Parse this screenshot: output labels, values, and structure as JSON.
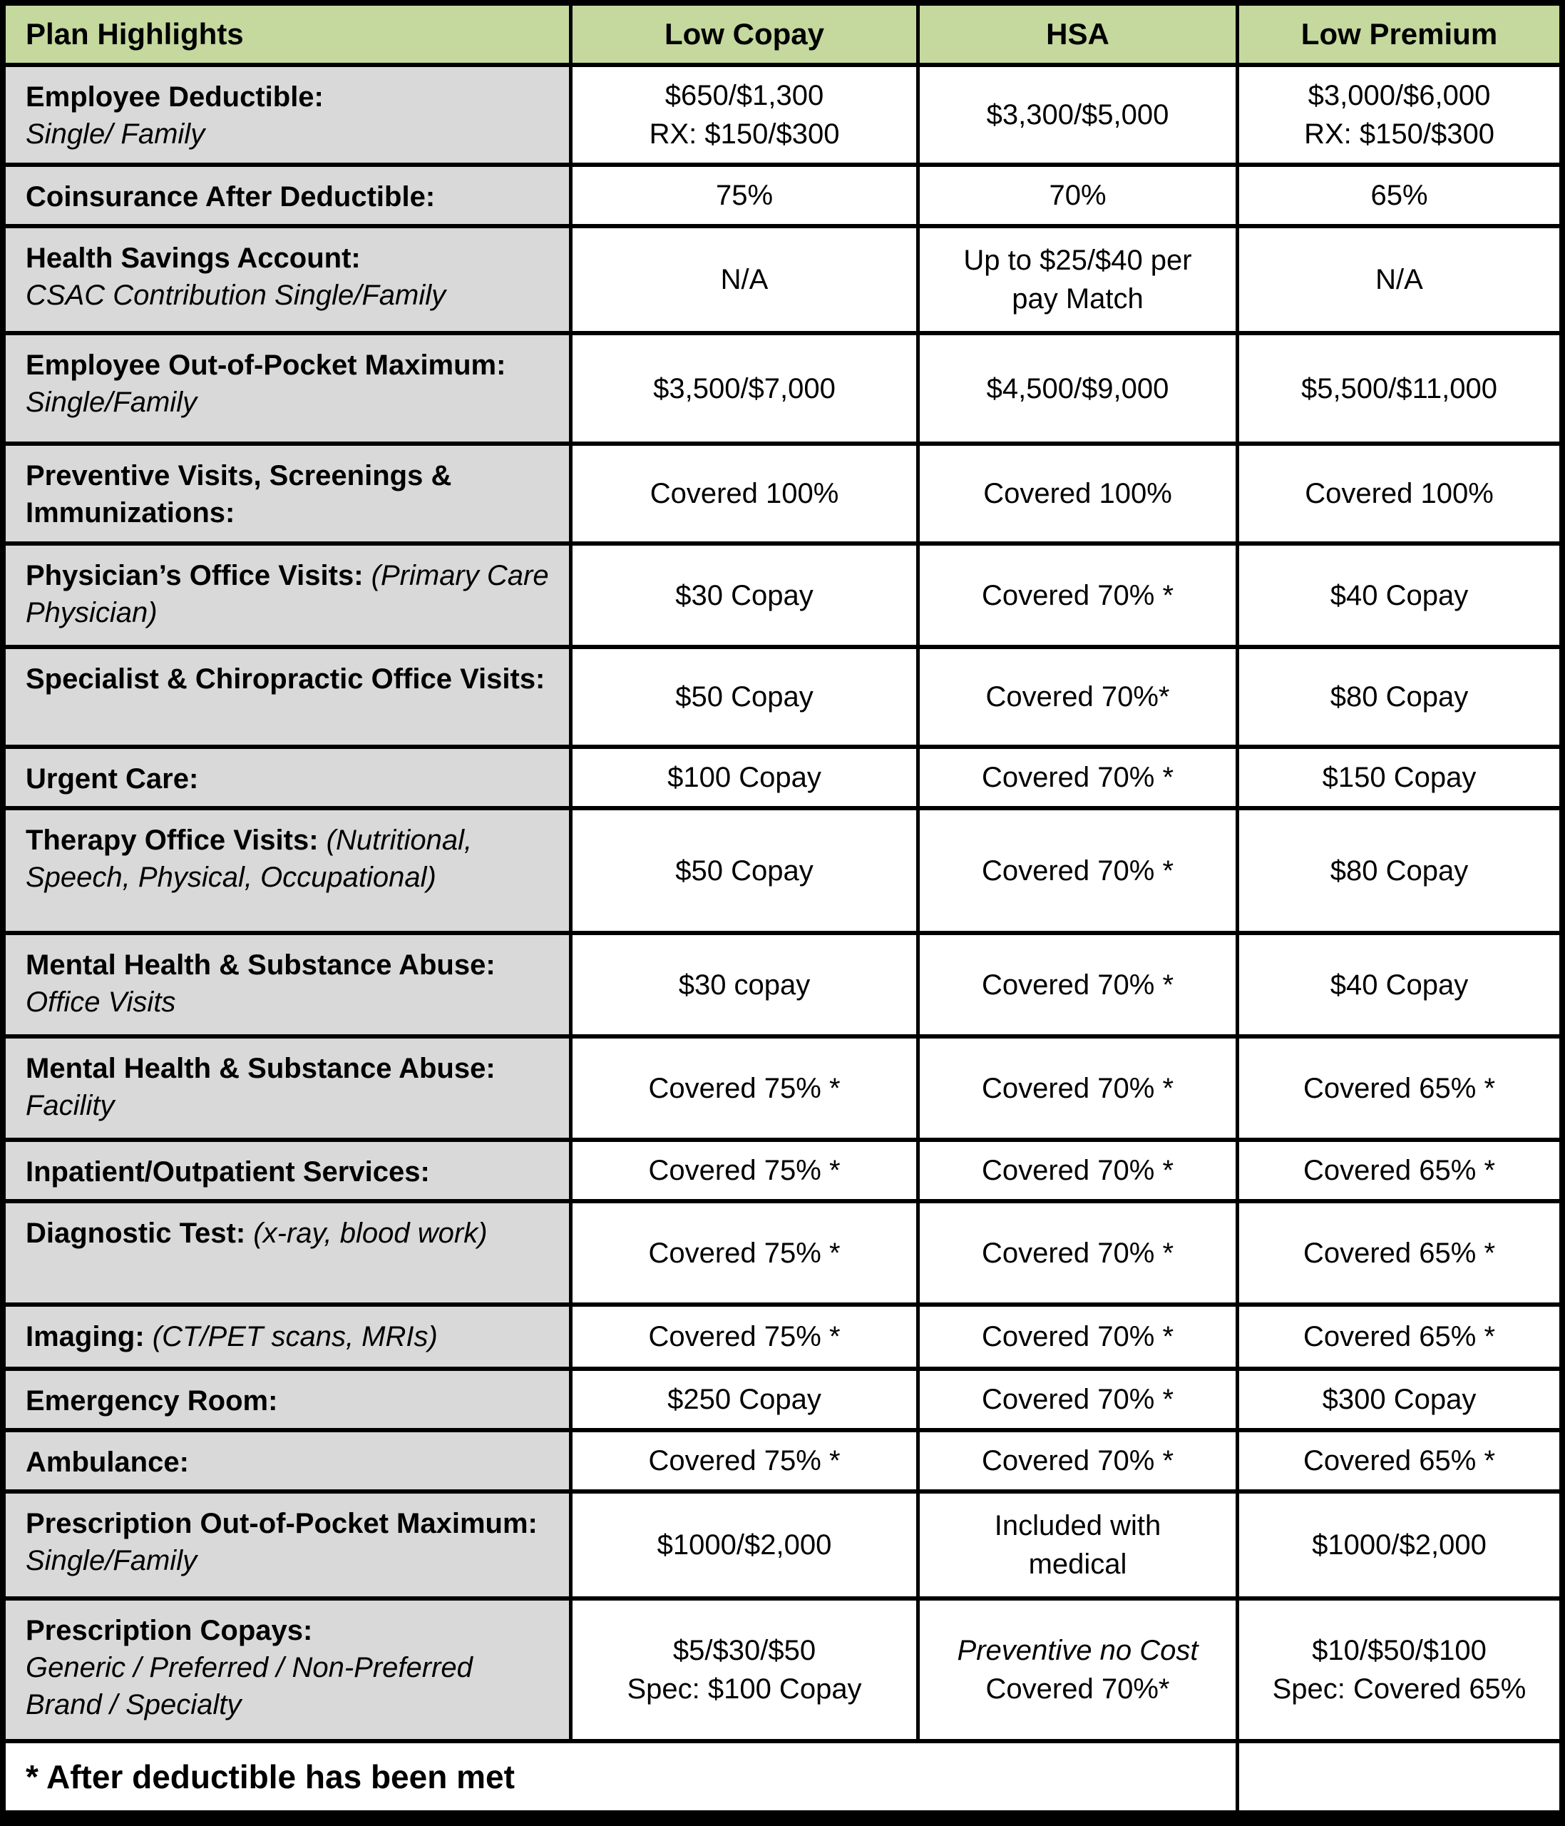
{
  "colors": {
    "header_green": "#c5d89e",
    "label_gray": "#d9d9d9",
    "border": "#000000"
  },
  "title": "Plan Highlights",
  "columns": [
    "Low Copay",
    "HSA",
    "Low Premium"
  ],
  "rows": [
    {
      "label": [
        {
          "t": "Employee Deductible:",
          "b": true
        },
        {
          "t": "Single/ Family",
          "i": true,
          "nl": true
        }
      ],
      "values": [
        [
          "$650/$1,300",
          "RX: $150/$300"
        ],
        [
          "$3,300/$5,000"
        ],
        [
          "$3,000/$6,000",
          "RX: $150/$300"
        ]
      ]
    },
    {
      "label": [
        {
          "t": "Coinsurance After Deductible:",
          "b": true
        }
      ],
      "values": [
        [
          "75%"
        ],
        [
          "70%"
        ],
        [
          "65%"
        ]
      ]
    },
    {
      "label": [
        {
          "t": "Health Savings Account:",
          "b": true
        },
        {
          "t": "CSAC Contribution Single/Family",
          "i": true,
          "nl": true
        }
      ],
      "values": [
        [
          "N/A"
        ],
        [
          "Up to $25/$40 per",
          "pay Match"
        ],
        [
          "N/A"
        ]
      ]
    },
    {
      "label": [
        {
          "t": "Employee Out-of-Pocket Maximum:",
          "b": true
        },
        {
          "t": " Single/Family",
          "i": true
        }
      ],
      "values": [
        [
          "$3,500/$7,000"
        ],
        [
          "$4,500/$9,000"
        ],
        [
          "$5,500/$11,000"
        ]
      ]
    },
    {
      "label": [
        {
          "t": "Preventive Visits, Screenings & Immunizations:",
          "b": true
        }
      ],
      "values": [
        [
          "Covered 100%"
        ],
        [
          "Covered 100%"
        ],
        [
          "Covered 100%"
        ]
      ]
    },
    {
      "label": [
        {
          "t": "Physician’s Office Visits:",
          "b": true
        },
        {
          "t": " (Primary Care Physician)",
          "i": true
        }
      ],
      "values": [
        [
          "$30 Copay"
        ],
        [
          "Covered 70% *"
        ],
        [
          "$40 Copay"
        ]
      ]
    },
    {
      "label": [
        {
          "t": "Specialist & Chiropractic Office Visits:",
          "b": true
        }
      ],
      "values": [
        [
          "$50 Copay"
        ],
        [
          "Covered 70%*"
        ],
        [
          "$80 Copay"
        ]
      ]
    },
    {
      "label": [
        {
          "t": "Urgent Care:",
          "b": true
        }
      ],
      "values": [
        [
          "$100 Copay"
        ],
        [
          "Covered 70% *"
        ],
        [
          "$150 Copay"
        ]
      ]
    },
    {
      "label": [
        {
          "t": "Therapy Office Visits:",
          "b": true
        },
        {
          "t": " (Nutritional, Speech, Physical, Occupational)",
          "i": true
        }
      ],
      "values": [
        [
          "$50 Copay"
        ],
        [
          "Covered 70% *"
        ],
        [
          "$80 Copay"
        ]
      ]
    },
    {
      "label": [
        {
          "t": "Mental Health & Substance Abuse:",
          "b": true
        },
        {
          "t": "Office Visits",
          "i": true,
          "nl": true
        }
      ],
      "values": [
        [
          "$30 copay"
        ],
        [
          "Covered 70% *"
        ],
        [
          "$40 Copay"
        ]
      ]
    },
    {
      "label": [
        {
          "t": "Mental Health & Substance Abuse:",
          "b": true
        },
        {
          "t": "Facility",
          "i": true,
          "nl": true
        }
      ],
      "values": [
        [
          "Covered 75% *"
        ],
        [
          "Covered 70% *"
        ],
        [
          "Covered 65% *"
        ]
      ]
    },
    {
      "label": [
        {
          "t": "Inpatient/Outpatient Services:",
          "b": true
        }
      ],
      "values": [
        [
          "Covered 75% *"
        ],
        [
          "Covered 70% *"
        ],
        [
          "Covered 65% *"
        ]
      ]
    },
    {
      "label": [
        {
          "t": "Diagnostic Test:",
          "b": true
        },
        {
          "t": " (x-ray, blood work)",
          "i": true
        }
      ],
      "values": [
        [
          "Covered 75% *"
        ],
        [
          "Covered 70% *"
        ],
        [
          "Covered 65% *"
        ]
      ]
    },
    {
      "label": [
        {
          "t": "Imaging:",
          "b": true
        },
        {
          "t": " (CT/PET scans, MRIs)",
          "i": true
        }
      ],
      "values": [
        [
          "Covered 75% *"
        ],
        [
          "Covered 70% *"
        ],
        [
          "Covered 65% *"
        ]
      ]
    },
    {
      "label": [
        {
          "t": "Emergency Room:",
          "b": true
        }
      ],
      "values": [
        [
          "$250 Copay"
        ],
        [
          "Covered 70% *"
        ],
        [
          "$300 Copay"
        ]
      ]
    },
    {
      "label": [
        {
          "t": "Ambulance:",
          "b": true
        }
      ],
      "values": [
        [
          "Covered 75% *"
        ],
        [
          "Covered 70% *"
        ],
        [
          "Covered 65% *"
        ]
      ]
    },
    {
      "label": [
        {
          "t": "Prescription Out-of-Pocket Maximum:",
          "b": true
        },
        {
          "t": " Single/Family",
          "i": true
        }
      ],
      "values": [
        [
          "$1000/$2,000"
        ],
        [
          "Included with",
          "medical"
        ],
        [
          "$1000/$2,000"
        ]
      ]
    },
    {
      "label": [
        {
          "t": "Prescription Copays:",
          "b": true
        },
        {
          "t": "Generic / Preferred / Non-Preferred Brand / Specialty",
          "i": true,
          "nl": true
        }
      ],
      "values": [
        [
          "$5/$30/$50",
          "Spec: $100 Copay"
        ],
        [
          {
            "t": "Preventive no Cost",
            "i": true
          },
          "Covered 70%*"
        ],
        [
          "$10/$50/$100",
          "Spec: Covered 65%"
        ]
      ]
    }
  ],
  "footer": "* After deductible has been met"
}
